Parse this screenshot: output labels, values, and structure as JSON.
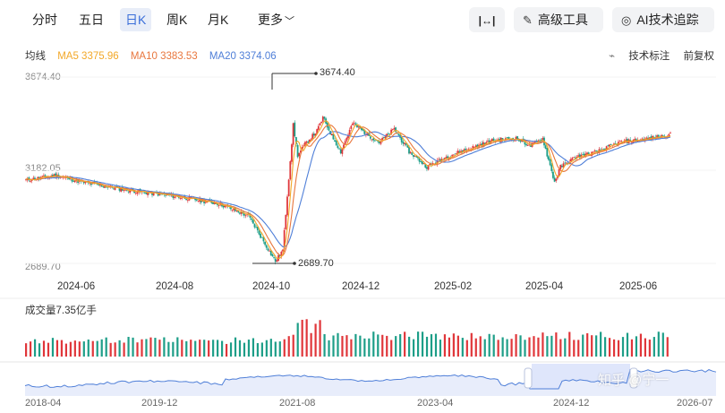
{
  "toolbar": {
    "tabs": [
      {
        "label": "分时",
        "active": false
      },
      {
        "label": "五日",
        "active": false
      },
      {
        "label": "日K",
        "active": true
      },
      {
        "label": "周K",
        "active": false
      },
      {
        "label": "月K",
        "active": false
      },
      {
        "label": "更多",
        "active": false
      }
    ],
    "tools": {
      "fit_icon": "|↔|",
      "advanced_label": "高级工具",
      "ai_label": "AI技术追踪"
    }
  },
  "indicators": {
    "label": "均线",
    "ma5": "MA5 3375.96",
    "ma10": "MA10 3383.53",
    "ma20": "MA20 3374.06",
    "tech_mark": "技术标注",
    "adjust": "前复权"
  },
  "colors": {
    "ma5": "#f2a829",
    "ma10": "#e8763d",
    "ma20": "#4f7fd8",
    "up": "#e0363a",
    "down": "#1d9e88",
    "active_tab": "#3b6fd9"
  },
  "price_axis": {
    "top": "3674.40",
    "mid": "3182.05",
    "bottom": "2689.70",
    "high_label": "3674.40",
    "low_label": "2689.70"
  },
  "x_axis": [
    "2024-06",
    "2024-08",
    "2024-10",
    "2024-12",
    "2025-02",
    "2025-04",
    "2025-06"
  ],
  "volume": {
    "title": "成交量7.35亿手"
  },
  "navigator": {
    "labels": [
      "2018-04",
      "2019-12",
      "2021-08",
      "2023-04",
      "2024-12",
      "2026-07"
    ]
  },
  "watermark": "知乎 @宁一"
}
